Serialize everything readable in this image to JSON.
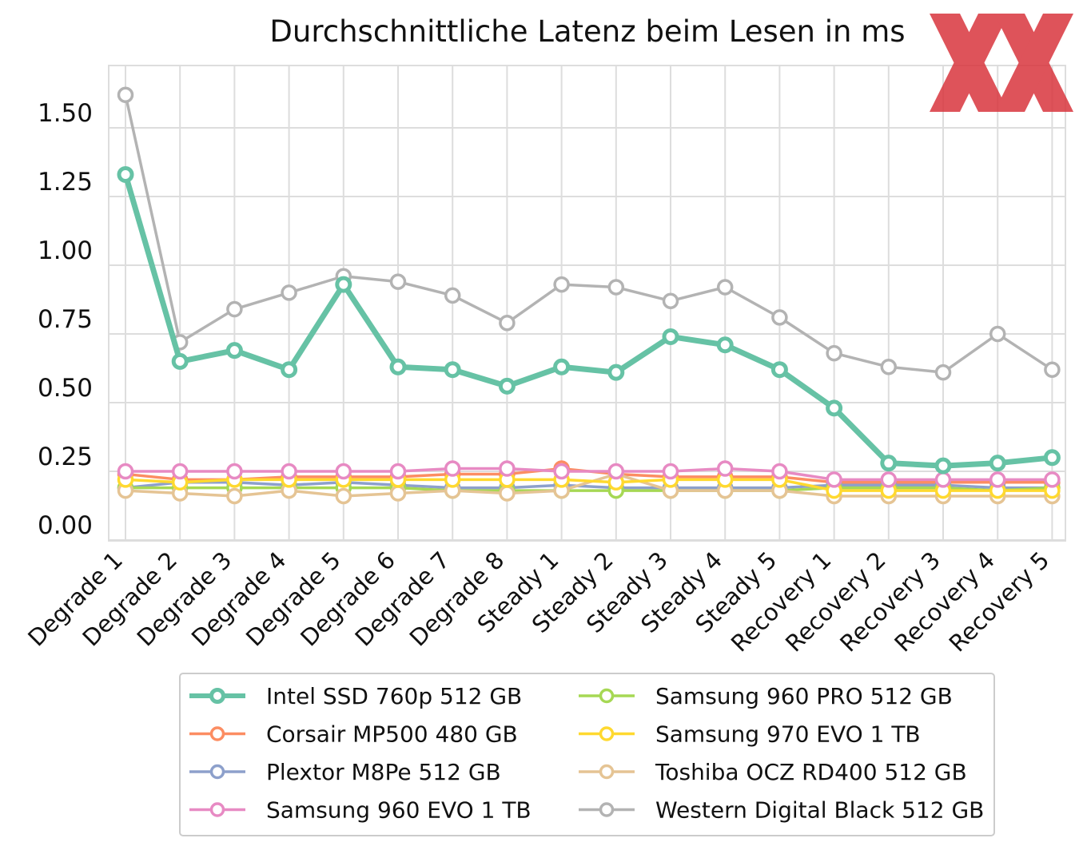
{
  "chart_data": {
    "type": "line",
    "title": "Durchschnittliche Latenz beim Lesen in ms",
    "xlabel": "",
    "ylabel": "",
    "ylim": [
      0,
      1.7
    ],
    "yticks": [
      0.0,
      0.25,
      0.5,
      0.75,
      1.0,
      1.25,
      1.5
    ],
    "ytick_labels": [
      "0.00",
      "0.25",
      "0.50",
      "0.75",
      "1.00",
      "1.25",
      "1.50"
    ],
    "grid": true,
    "legend_position": "bottom",
    "categories": [
      "Degrade 1",
      "Degrade 2",
      "Degrade 3",
      "Degrade 4",
      "Degrade 5",
      "Degrade 6",
      "Degrade 7",
      "Degrade 8",
      "Steady 1",
      "Steady 2",
      "Steady 3",
      "Steady 4",
      "Steady 5",
      "Recovery 1",
      "Recovery 2",
      "Recovery 3",
      "Recovery 4",
      "Recovery 5"
    ],
    "series": [
      {
        "name": "Intel SSD 760p 512 GB",
        "color": "#66c2a5",
        "highlight": true,
        "values": [
          1.33,
          0.65,
          0.69,
          0.62,
          0.93,
          0.63,
          0.62,
          0.56,
          0.63,
          0.61,
          0.74,
          0.71,
          0.62,
          0.48,
          0.28,
          0.27,
          0.28,
          0.3
        ]
      },
      {
        "name": "Corsair MP500 480 GB",
        "color": "#fc8d62",
        "values": [
          0.24,
          0.22,
          0.22,
          0.23,
          0.23,
          0.23,
          0.24,
          0.24,
          0.26,
          0.24,
          0.23,
          0.23,
          0.23,
          0.21,
          0.21,
          0.21,
          0.21,
          0.21
        ]
      },
      {
        "name": "Plextor M8Pe 512 GB",
        "color": "#8da0cb",
        "values": [
          0.19,
          0.21,
          0.21,
          0.2,
          0.21,
          0.2,
          0.19,
          0.19,
          0.2,
          0.19,
          0.19,
          0.19,
          0.19,
          0.2,
          0.2,
          0.2,
          0.19,
          0.19
        ]
      },
      {
        "name": "Samsung 960 EVO 1 TB",
        "color": "#e78ac3",
        "values": [
          0.25,
          0.25,
          0.25,
          0.25,
          0.25,
          0.25,
          0.26,
          0.26,
          0.25,
          0.25,
          0.25,
          0.26,
          0.25,
          0.22,
          0.22,
          0.22,
          0.22,
          0.22
        ]
      },
      {
        "name": "Samsung 960 PRO 512 GB",
        "color": "#a6d854",
        "values": [
          0.19,
          0.19,
          0.19,
          0.19,
          0.19,
          0.19,
          0.18,
          0.18,
          0.18,
          0.18,
          0.18,
          0.18,
          0.18,
          0.19,
          0.19,
          0.19,
          0.18,
          0.19
        ]
      },
      {
        "name": "Samsung 970 EVO 1 TB",
        "color": "#ffd92f",
        "values": [
          0.22,
          0.21,
          0.22,
          0.22,
          0.22,
          0.22,
          0.22,
          0.22,
          0.22,
          0.21,
          0.22,
          0.22,
          0.22,
          0.18,
          0.18,
          0.18,
          0.18,
          0.18
        ]
      },
      {
        "name": "Toshiba OCZ RD400 512 GB",
        "color": "#e5c494",
        "values": [
          0.18,
          0.17,
          0.16,
          0.18,
          0.16,
          0.17,
          0.18,
          0.17,
          0.18,
          0.24,
          0.18,
          0.18,
          0.18,
          0.16,
          0.16,
          0.16,
          0.16,
          0.16
        ]
      },
      {
        "name": "Western Digital Black 512 GB",
        "color": "#b3b3b3",
        "values": [
          1.62,
          0.72,
          0.84,
          0.9,
          0.96,
          0.94,
          0.89,
          0.79,
          0.93,
          0.92,
          0.87,
          0.92,
          0.81,
          0.68,
          0.63,
          0.61,
          0.75,
          0.62
        ]
      }
    ]
  },
  "logo": {
    "name": "XX",
    "color": "#d9363e"
  }
}
